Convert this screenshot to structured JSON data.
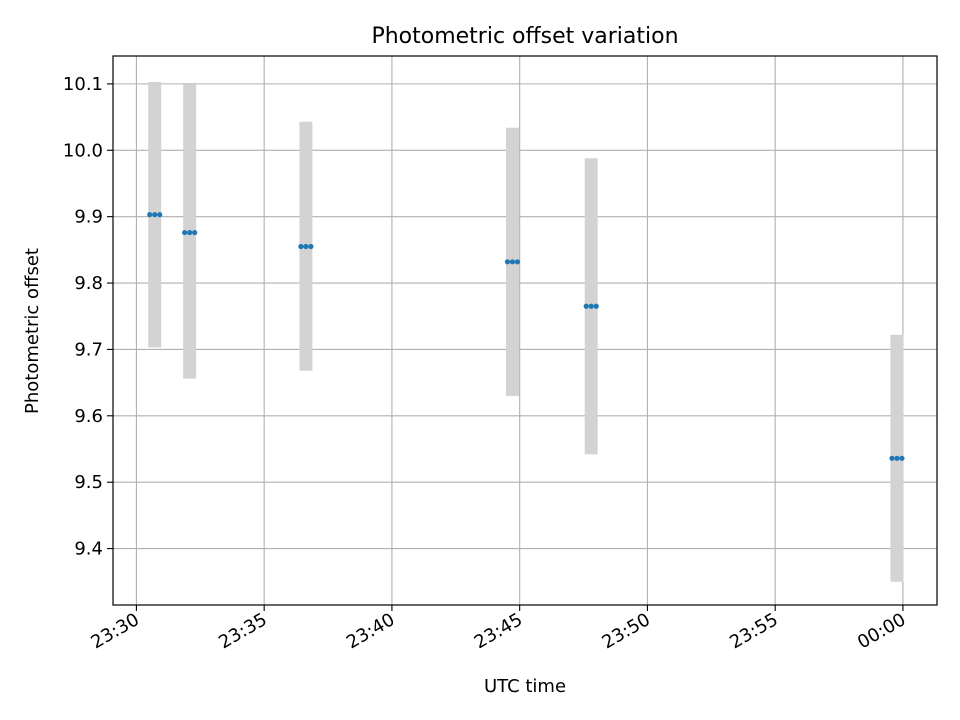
{
  "chart_data": {
    "type": "scatter",
    "title": "Photometric offset variation",
    "xlabel": "UTC time",
    "ylabel": "Photometric offset",
    "xlim": [
      "23:29:05",
      "00:01:20"
    ],
    "ylim": [
      9.315,
      10.142
    ],
    "grid": true,
    "x_ticks": [
      "23:30",
      "23:35",
      "23:40",
      "23:45",
      "23:50",
      "23:55",
      "00:00"
    ],
    "y_ticks": [
      "9.4",
      "9.5",
      "9.6",
      "9.7",
      "9.8",
      "9.9",
      "10.0",
      "10.1"
    ],
    "series": [
      {
        "marker_color": "#1f77b4",
        "errorbar_color": "#d3d3d3",
        "points": [
          {
            "time": "23:30:43",
            "y": 9.903,
            "y_low": 9.703,
            "y_high": 10.103
          },
          {
            "time": "23:32:05",
            "y": 9.876,
            "y_low": 9.656,
            "y_high": 10.099
          },
          {
            "time": "23:36:38",
            "y": 9.855,
            "y_low": 9.668,
            "y_high": 10.043
          },
          {
            "time": "23:44:43",
            "y": 9.832,
            "y_low": 9.63,
            "y_high": 10.034
          },
          {
            "time": "23:47:48",
            "y": 9.765,
            "y_low": 9.542,
            "y_high": 9.988
          },
          {
            "time": "23:59:46",
            "y": 9.536,
            "y_low": 9.35,
            "y_high": 9.722
          }
        ]
      }
    ]
  }
}
